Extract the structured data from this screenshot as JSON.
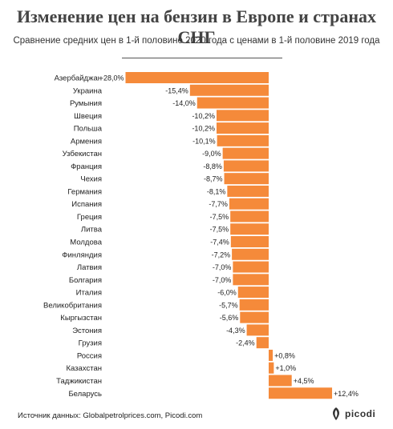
{
  "title": "Изменение цен на бензин в Европе и странах СНГ",
  "subtitle": "Сравнение средних цен в 1-й половине 2020 года с ценами в 1-й половине 2019 года",
  "source": "Источник данных: Globalpetrolprices.com, Picodi.com",
  "logo": "picodi",
  "colors": {
    "bar": "#f58a3a",
    "text": "#222222",
    "title": "#444444"
  },
  "chart_data": {
    "type": "bar",
    "orientation": "horizontal",
    "categories": [
      "Азербайджан",
      "Украина",
      "Румыния",
      "Швеция",
      "Польша",
      "Армения",
      "Узбекистан",
      "Франция",
      "Чехия",
      "Германия",
      "Испания",
      "Греция",
      "Литва",
      "Молдова",
      "Финляндия",
      "Латвия",
      "Болгария",
      "Италия",
      "Великобритания",
      "Кыргызстан",
      "Эстония",
      "Грузия",
      "Россия",
      "Казахстан",
      "Таджикистан",
      "Беларусь"
    ],
    "values": [
      -28.0,
      -15.4,
      -14.0,
      -10.2,
      -10.2,
      -10.1,
      -9.0,
      -8.8,
      -8.7,
      -8.1,
      -7.7,
      -7.5,
      -7.5,
      -7.4,
      -7.2,
      -7.0,
      -7.0,
      -6.0,
      -5.7,
      -5.6,
      -4.3,
      -2.4,
      0.8,
      1.0,
      4.5,
      12.4
    ],
    "labels": [
      "-28,0%",
      "-15,4%",
      "-14,0%",
      "-10,2%",
      "-10,2%",
      "-10,1%",
      "-9,0%",
      "-8,8%",
      "-8,7%",
      "-8,1%",
      "-7,7%",
      "-7,5%",
      "-7,5%",
      "-7,4%",
      "-7,2%",
      "-7,0%",
      "-7,0%",
      "-6,0%",
      "-5,7%",
      "-5,6%",
      "-4,3%",
      "-2,4%",
      "+0,8%",
      "+1,0%",
      "+4,5%",
      "+12,4%"
    ],
    "unit": "%",
    "xlim": [
      -28,
      12.4
    ],
    "grid": false,
    "legend": "none"
  }
}
